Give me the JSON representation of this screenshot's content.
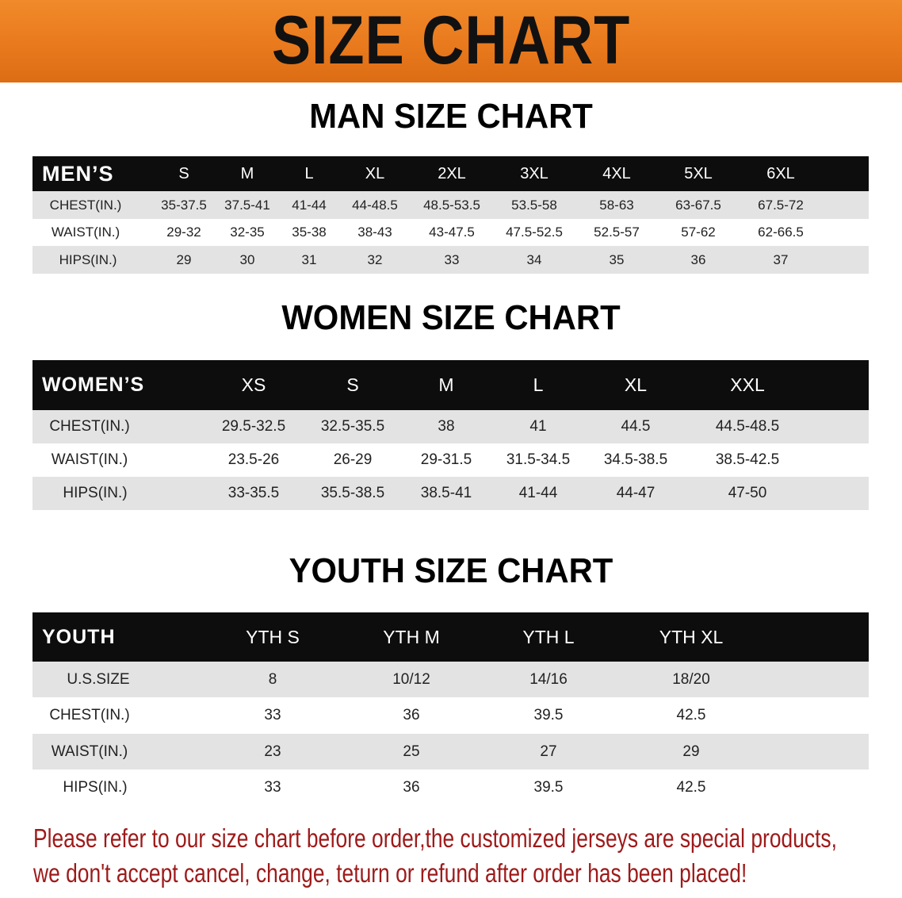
{
  "banner": {
    "title": "SIZE CHART",
    "color": "#e8781c"
  },
  "men": {
    "section_title": "MAN SIZE CHART",
    "header_label": "MEN’S",
    "sizes": [
      "S",
      "M",
      "L",
      "XL",
      "2XL",
      "3XL",
      "4XL",
      "5XL",
      "6XL"
    ],
    "rows": [
      {
        "label": "CHEST(IN.)",
        "values": [
          "35-37.5",
          "37.5-41",
          "41-44",
          "44-48.5",
          "48.5-53.5",
          "53.5-58",
          "58-63",
          "63-67.5",
          "67.5-72"
        ]
      },
      {
        "label": "WAIST(IN.)",
        "values": [
          "29-32",
          "32-35",
          "35-38",
          "38-43",
          "43-47.5",
          "47.5-52.5",
          "52.5-57",
          "57-62",
          "62-66.5"
        ]
      },
      {
        "label": "HIPS(IN.)",
        "values": [
          "29",
          "30",
          "31",
          "32",
          "33",
          "34",
          "35",
          "36",
          "37"
        ]
      }
    ]
  },
  "women": {
    "section_title": "WOMEN SIZE CHART",
    "header_label": "WOMEN’S",
    "sizes": [
      "XS",
      "S",
      "M",
      "L",
      "XL",
      "XXL"
    ],
    "rows": [
      {
        "label": "CHEST(IN.)",
        "values": [
          "29.5-32.5",
          "32.5-35.5",
          "38",
          "41",
          "44.5",
          "44.5-48.5"
        ]
      },
      {
        "label": "WAIST(IN.)",
        "values": [
          "23.5-26",
          "26-29",
          "29-31.5",
          "31.5-34.5",
          "34.5-38.5",
          "38.5-42.5"
        ]
      },
      {
        "label": "HIPS(IN.)",
        "values": [
          "33-35.5",
          "35.5-38.5",
          "38.5-41",
          "41-44",
          "44-47",
          "47-50"
        ]
      }
    ]
  },
  "youth": {
    "section_title": "YOUTH SIZE CHART",
    "header_label": "YOUTH",
    "sizes": [
      "YTH S",
      "YTH M",
      "YTH L",
      "YTH XL"
    ],
    "rows": [
      {
        "label": "U.S.SIZE",
        "values": [
          "8",
          "10/12",
          "14/16",
          "18/20"
        ]
      },
      {
        "label": "CHEST(IN.)",
        "values": [
          "33",
          "36",
          "39.5",
          "42.5"
        ]
      },
      {
        "label": "WAIST(IN.)",
        "values": [
          "23",
          "25",
          "27",
          "29"
        ]
      },
      {
        "label": "HIPS(IN.)",
        "values": [
          "33",
          "36",
          "39.5",
          "42.5"
        ]
      }
    ]
  },
  "note": {
    "line1": "Please refer to our size chart before order,the customized jerseys are special products,",
    "line2": "we don't accept cancel, change, teturn or refund after order has been placed!",
    "color": "#9e1a1a"
  }
}
